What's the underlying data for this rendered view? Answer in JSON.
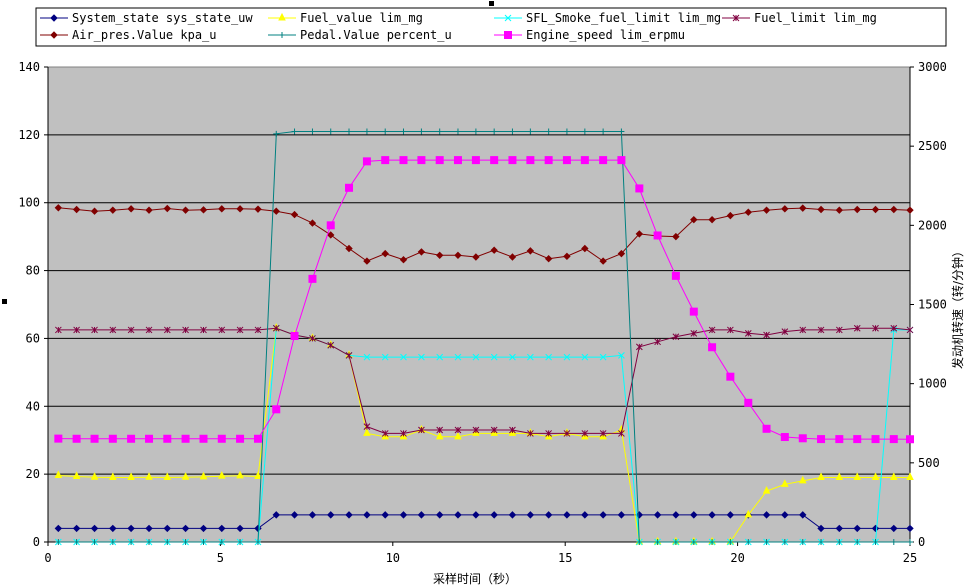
{
  "chart_data": {
    "type": "line",
    "xlabel": "采样时间（秒）",
    "ylabel_right": "发动机转速（转/分钟）",
    "xlim": [
      0,
      25
    ],
    "ylim": [
      0,
      140
    ],
    "ylim_right": [
      0,
      3000
    ],
    "x_ticks": [
      0,
      5,
      10,
      15,
      20,
      25
    ],
    "y_ticks": [
      0,
      20,
      40,
      60,
      80,
      100,
      120,
      140
    ],
    "y_right_ticks": [
      0,
      500,
      1000,
      1500,
      2000,
      2500,
      3000
    ],
    "grid": "horizontal",
    "legend_placement": "top",
    "plot_background": "#c0c0c0",
    "series": [
      {
        "name": "System_state sys_state_uw",
        "color": "#000080",
        "marker": "diamond",
        "axis": "left",
        "x": [
          0.3,
          0.83,
          1.35,
          1.88,
          2.41,
          2.93,
          3.46,
          3.99,
          4.51,
          5.04,
          5.57,
          6.09,
          6.62,
          7.15,
          7.67,
          8.2,
          8.73,
          9.25,
          9.78,
          10.31,
          10.83,
          11.36,
          11.89,
          12.41,
          12.94,
          13.47,
          13.99,
          14.52,
          15.05,
          15.57,
          16.1,
          16.63,
          17.15,
          17.68,
          18.21,
          18.73,
          19.26,
          19.79,
          20.31,
          20.84,
          21.37,
          21.89,
          22.42,
          22.95,
          23.47,
          24.0,
          24.53,
          25.0
        ],
        "values": [
          4,
          4,
          4,
          4,
          4,
          4,
          4,
          4,
          4,
          4,
          4,
          4,
          8,
          8,
          8,
          8,
          8,
          8,
          8,
          8,
          8,
          8,
          8,
          8,
          8,
          8,
          8,
          8,
          8,
          8,
          8,
          8,
          8,
          8,
          8,
          8,
          8,
          8,
          8,
          8,
          8,
          8,
          4,
          4,
          4,
          4,
          4,
          4
        ]
      },
      {
        "name": "Fuel_value lim_mg",
        "color": "#ffff00",
        "marker": "triangle",
        "axis": "left",
        "x": [
          0.3,
          0.83,
          1.35,
          1.88,
          2.41,
          2.93,
          3.46,
          3.99,
          4.51,
          5.04,
          5.57,
          6.09,
          6.62,
          7.15,
          7.67,
          8.2,
          8.73,
          9.25,
          9.78,
          10.31,
          10.83,
          11.36,
          11.89,
          12.41,
          12.94,
          13.47,
          13.99,
          14.52,
          15.05,
          15.57,
          16.1,
          16.63,
          17.15,
          17.68,
          18.21,
          18.73,
          19.26,
          19.79,
          20.31,
          20.84,
          21.37,
          21.89,
          22.42,
          22.95,
          23.47,
          24.0,
          24.53,
          25.0
        ],
        "values": [
          19.6,
          19.3,
          19.1,
          19.0,
          19.0,
          19.1,
          19.0,
          19.1,
          19.2,
          19.4,
          19.5,
          19.3,
          63,
          61,
          60,
          58,
          55,
          32,
          31,
          31,
          33,
          31,
          31,
          32,
          32,
          32,
          32,
          31,
          32,
          31,
          31,
          33,
          0,
          0,
          0,
          0,
          0,
          0,
          8,
          15,
          17,
          18,
          19,
          19,
          19,
          19,
          19,
          19
        ]
      },
      {
        "name": "SFL_Smoke_fuel_limit lim_mg",
        "color": "#00ffff",
        "marker": "x",
        "axis": "left",
        "x": [
          0.3,
          0.83,
          1.35,
          1.88,
          2.41,
          2.93,
          3.46,
          3.99,
          4.51,
          5.04,
          5.57,
          6.09,
          6.62,
          7.15,
          7.67,
          8.2,
          8.73,
          9.25,
          9.78,
          10.31,
          10.83,
          11.36,
          11.89,
          12.41,
          12.94,
          13.47,
          13.99,
          14.52,
          15.05,
          15.57,
          16.1,
          16.63,
          17.15,
          17.68,
          18.21,
          18.73,
          19.26,
          19.79,
          20.31,
          20.84,
          21.37,
          21.89,
          22.42,
          22.95,
          23.47,
          24.0,
          24.53,
          25.0
        ],
        "values": [
          0,
          0,
          0,
          0,
          0,
          0,
          0,
          0,
          0,
          0,
          0,
          0,
          63,
          61,
          60,
          58,
          55,
          54.5,
          54.5,
          54.5,
          54.5,
          54.5,
          54.5,
          54.5,
          54.5,
          54.5,
          54.5,
          54.5,
          54.5,
          54.5,
          54.5,
          55,
          0,
          0,
          0,
          0,
          0,
          0,
          0,
          0,
          0,
          0,
          0,
          0,
          0,
          0,
          62.5,
          62.5
        ]
      },
      {
        "name": "Fuel_limit lim_mg",
        "color": "#800040",
        "marker": "star",
        "axis": "left",
        "x": [
          0.3,
          0.83,
          1.35,
          1.88,
          2.41,
          2.93,
          3.46,
          3.99,
          4.51,
          5.04,
          5.57,
          6.09,
          6.62,
          7.15,
          7.67,
          8.2,
          8.73,
          9.25,
          9.78,
          10.31,
          10.83,
          11.36,
          11.89,
          12.41,
          12.94,
          13.47,
          13.99,
          14.52,
          15.05,
          15.57,
          16.1,
          16.63,
          17.15,
          17.68,
          18.21,
          18.73,
          19.26,
          19.79,
          20.31,
          20.84,
          21.37,
          21.89,
          22.42,
          22.95,
          23.47,
          24.0,
          24.53,
          25.0
        ],
        "values": [
          62.5,
          62.5,
          62.5,
          62.5,
          62.5,
          62.5,
          62.5,
          62.5,
          62.5,
          62.5,
          62.5,
          62.5,
          63,
          61,
          60,
          58,
          55,
          34,
          32,
          32,
          33,
          33,
          33,
          33,
          33,
          33,
          32,
          32,
          32,
          32,
          32,
          32,
          57.5,
          59,
          60.5,
          61.5,
          62.5,
          62.5,
          61.5,
          61,
          62,
          62.5,
          62.5,
          62.5,
          63,
          63,
          63,
          62.5
        ]
      },
      {
        "name": "Air_pres.Value kpa_u",
        "color": "#800000",
        "marker": "diamond",
        "axis": "left",
        "x": [
          0.3,
          0.83,
          1.35,
          1.88,
          2.41,
          2.93,
          3.46,
          3.99,
          4.51,
          5.04,
          5.57,
          6.09,
          6.62,
          7.15,
          7.67,
          8.2,
          8.73,
          9.25,
          9.78,
          10.31,
          10.83,
          11.36,
          11.89,
          12.41,
          12.94,
          13.47,
          13.99,
          14.52,
          15.05,
          15.57,
          16.1,
          16.63,
          17.15,
          17.68,
          18.21,
          18.73,
          19.26,
          19.79,
          20.31,
          20.84,
          21.37,
          21.89,
          22.42,
          22.95,
          23.47,
          24.0,
          24.53,
          25.0
        ],
        "values": [
          98.5,
          98,
          97.5,
          97.8,
          98.2,
          97.8,
          98.3,
          97.8,
          97.9,
          98.2,
          98.2,
          98.1,
          97.5,
          96.5,
          94,
          90.5,
          86.5,
          82.8,
          85,
          83.2,
          85.5,
          84.5,
          84.5,
          84,
          86,
          84,
          85.8,
          83.5,
          84.2,
          86.5,
          82.8,
          85,
          90.8,
          90.2,
          90,
          95,
          95,
          96.2,
          97.2,
          97.8,
          98.2,
          98.4,
          98,
          97.8,
          98,
          98,
          98,
          97.8
        ]
      },
      {
        "name": "Pedal.Value percent_u",
        "color": "#008080",
        "marker": "plus",
        "axis": "left",
        "x": [
          0.3,
          0.83,
          1.35,
          1.88,
          2.41,
          2.93,
          3.46,
          3.99,
          4.51,
          5.04,
          5.57,
          6.09,
          6.62,
          7.15,
          7.67,
          8.2,
          8.73,
          9.25,
          9.78,
          10.31,
          10.83,
          11.36,
          11.89,
          12.41,
          12.94,
          13.47,
          13.99,
          14.52,
          15.05,
          15.57,
          16.1,
          16.63,
          17.15,
          17.68,
          18.21,
          18.73,
          19.26,
          19.79,
          20.31,
          20.84,
          21.37,
          21.89,
          22.42,
          22.95,
          23.47,
          24.0,
          24.53,
          25.0
        ],
        "values": [
          0,
          0,
          0,
          0,
          0,
          0,
          0,
          0,
          0,
          0,
          0,
          0,
          120.3,
          121,
          121,
          121,
          121,
          121,
          121,
          121,
          121,
          121,
          121,
          121,
          121,
          121,
          121,
          121,
          121,
          121,
          121,
          121,
          0,
          0,
          0,
          0,
          0,
          0,
          0,
          0,
          0,
          0,
          0,
          0,
          0,
          0,
          0,
          0
        ]
      },
      {
        "name": "Engine_speed lim_erpmu",
        "color": "#ff00ff",
        "marker": "square",
        "axis": "right",
        "x": [
          0.3,
          0.83,
          1.35,
          1.88,
          2.41,
          2.93,
          3.46,
          3.99,
          4.51,
          5.04,
          5.57,
          6.09,
          6.62,
          7.15,
          7.67,
          8.2,
          8.73,
          9.25,
          9.78,
          10.31,
          10.83,
          11.36,
          11.89,
          12.41,
          12.94,
          13.47,
          13.99,
          14.52,
          15.05,
          15.57,
          16.1,
          16.63,
          17.15,
          17.68,
          18.21,
          18.73,
          19.26,
          19.79,
          20.31,
          20.84,
          21.37,
          21.89,
          22.42,
          22.95,
          23.47,
          24.0,
          24.53,
          25.0
        ],
        "values": [
          653,
          652,
          652,
          652,
          652,
          652,
          652,
          652,
          652,
          652,
          652,
          652,
          838,
          1301,
          1662,
          2000,
          2237,
          2404,
          2412,
          2412,
          2412,
          2412,
          2412,
          2412,
          2412,
          2412,
          2412,
          2412,
          2412,
          2412,
          2412,
          2412,
          2233,
          1936,
          1681,
          1455,
          1230,
          1044,
          879,
          715,
          663,
          655,
          650,
          650,
          650,
          650,
          650,
          649
        ]
      }
    ]
  }
}
